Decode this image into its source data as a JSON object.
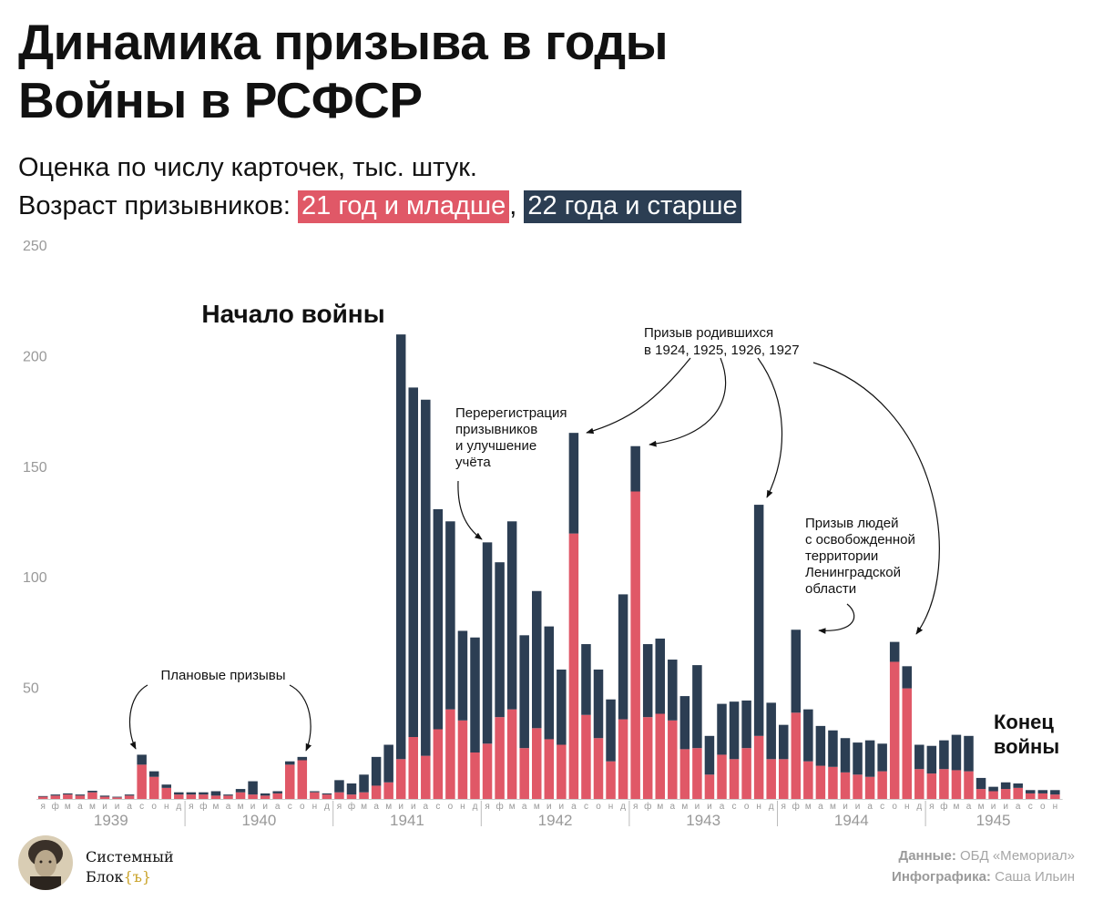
{
  "header": {
    "title": "Динамика призыва в годы Войны в РСФСР",
    "subtitle": "Оценка по числу карточек, тыс. штук.",
    "legend_prefix": "Возраст призывников: ",
    "legend_sep": ","
  },
  "colors": {
    "young": "#e05867",
    "old": "#2c3e53",
    "axis": "#999999"
  },
  "annotations": {
    "war_start": "Начало войны",
    "war_end": [
      "Конец",
      "войны"
    ],
    "planned": "Плановые призывы",
    "reregistration": [
      "Перерегистрация",
      "призывников",
      "и улучшение",
      "учёта"
    ],
    "born_call": [
      "Призыв родившихся",
      "в 1924, 1925, 1926, 1927"
    ],
    "liberated": [
      "Призыв людей",
      "с освобожденной",
      "территории",
      "Ленинградской",
      "области"
    ]
  },
  "footer": {
    "brand_line1": "Системный",
    "brand_line2_main": "Блок",
    "brand_line2_accent": "{ъ}",
    "data_label": "Данные:",
    "data_value": " ОБД «Мемориал»",
    "infographic_label": "Инфографика:",
    "infographic_value": " Саша Ильин"
  },
  "chart_data": {
    "type": "bar",
    "stacked": true,
    "ylim": [
      0,
      250
    ],
    "yticks": [
      50,
      100,
      150,
      200,
      250
    ],
    "years": [
      "1939",
      "1940",
      "1941",
      "1942",
      "1943",
      "1944",
      "1945"
    ],
    "month_labels": [
      "я",
      "ф",
      "м",
      "а",
      "м",
      "и",
      "и",
      "а",
      "с",
      "о",
      "н",
      "д"
    ],
    "legend": [
      "21 год и младше",
      "22 года и старше"
    ],
    "series": [
      {
        "name": "21 год и младше",
        "color": "#e05867",
        "values": [
          1,
          1.5,
          2,
          1.5,
          3,
          1,
          0.7,
          1.5,
          15.5,
          10,
          5,
          2,
          2,
          2,
          1.5,
          1.5,
          3,
          2,
          1.5,
          2.5,
          15.5,
          17.5,
          3,
          2,
          3,
          2,
          3,
          6,
          7.5,
          18,
          28,
          19.5,
          31.5,
          40.5,
          35.5,
          21,
          25,
          37,
          40.5,
          23,
          32,
          27,
          24.5,
          120,
          38,
          27.5,
          17,
          36,
          139,
          37,
          38.5,
          35.5,
          22.5,
          23,
          11,
          20,
          18,
          23,
          28.5,
          18,
          18,
          39,
          17,
          15,
          14.5,
          12,
          11,
          10,
          12.5,
          62,
          50,
          13.5,
          11.5,
          13.5,
          13,
          12.5,
          4.5,
          3.5,
          4.5,
          5,
          2.5,
          2.5,
          2
        ]
      },
      {
        "name": "22 года и старше",
        "color": "#2c3e53",
        "values": [
          0.3,
          0.5,
          0.5,
          0.5,
          0.7,
          0.5,
          0.3,
          0.5,
          4.5,
          2.5,
          1.5,
          1,
          1,
          1,
          2,
          0.5,
          1.5,
          6,
          1,
          1,
          1.5,
          1.5,
          0.5,
          0.5,
          5.5,
          5,
          8,
          13,
          17,
          192,
          158,
          161,
          99.5,
          85,
          40.5,
          52,
          91,
          70,
          85,
          51,
          62,
          51,
          34,
          45.5,
          32,
          31,
          28,
          56.5,
          20.5,
          33,
          34,
          27.5,
          24,
          37.5,
          17.5,
          23,
          26,
          21.5,
          104.5,
          25.5,
          15.5,
          37.5,
          23.5,
          18,
          16.5,
          15.5,
          14.5,
          16.5,
          12.5,
          9,
          10,
          11,
          12.5,
          13,
          16,
          16,
          5,
          2,
          3,
          2,
          1.5,
          1.5,
          2
        ]
      }
    ]
  }
}
